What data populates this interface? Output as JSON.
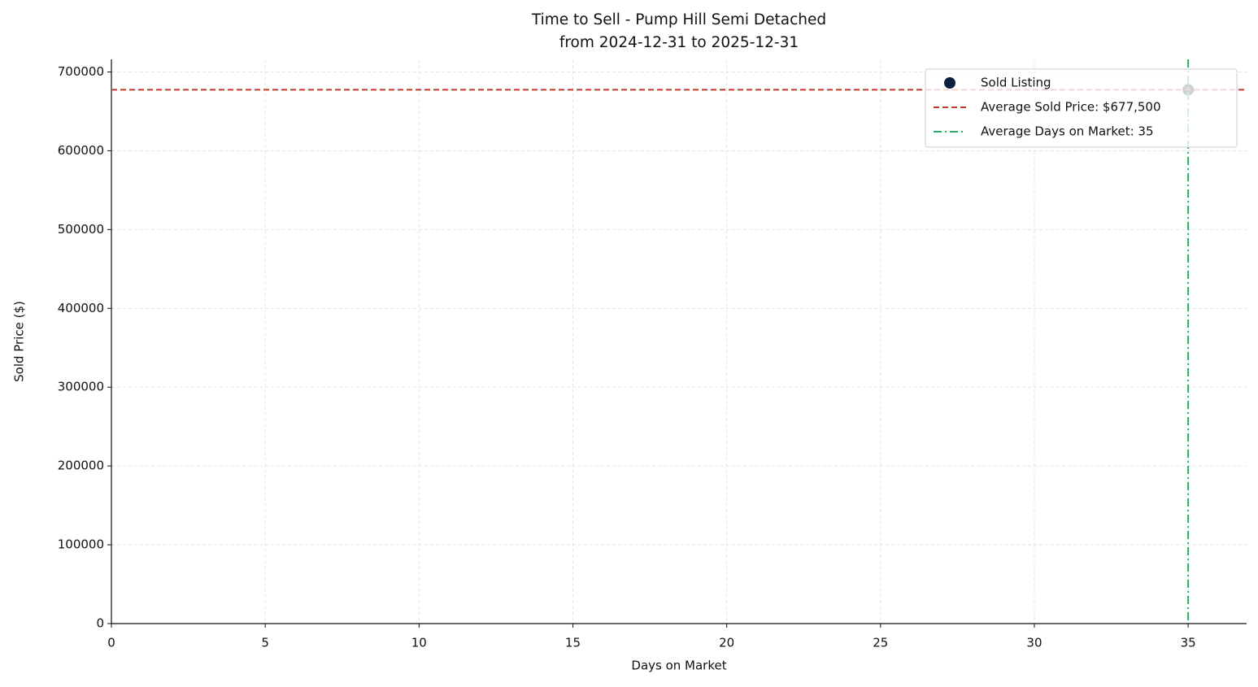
{
  "chart_data": {
    "type": "scatter",
    "title": "Time to Sell - Pump Hill Semi Detached",
    "subtitle": "from 2024-12-31 to 2025-12-31",
    "x_label": "Days on Market",
    "y_label": "Sold Price ($)",
    "series": [
      {
        "name": "Sold Listing",
        "color": "#0b1f3f",
        "x": [
          35
        ],
        "values": [
          677500
        ]
      }
    ],
    "hlines": [
      {
        "name": "Average Sold Price: $677,500",
        "value": 677500,
        "color": "#c0392b",
        "style": "dashed"
      }
    ],
    "vlines": [
      {
        "name": "Average Days on Market: 35",
        "value": 35,
        "color": "#27ae60",
        "style": "dashdot"
      }
    ],
    "xlim": [
      0,
      36.9
    ],
    "xticks": [
      0,
      5,
      10,
      15,
      20,
      25,
      30,
      35
    ],
    "ylim": [
      0,
      716000
    ],
    "yticks": [
      0,
      100000,
      200000,
      300000,
      400000,
      500000,
      600000,
      700000
    ],
    "grid": true,
    "legend": "upper right"
  }
}
